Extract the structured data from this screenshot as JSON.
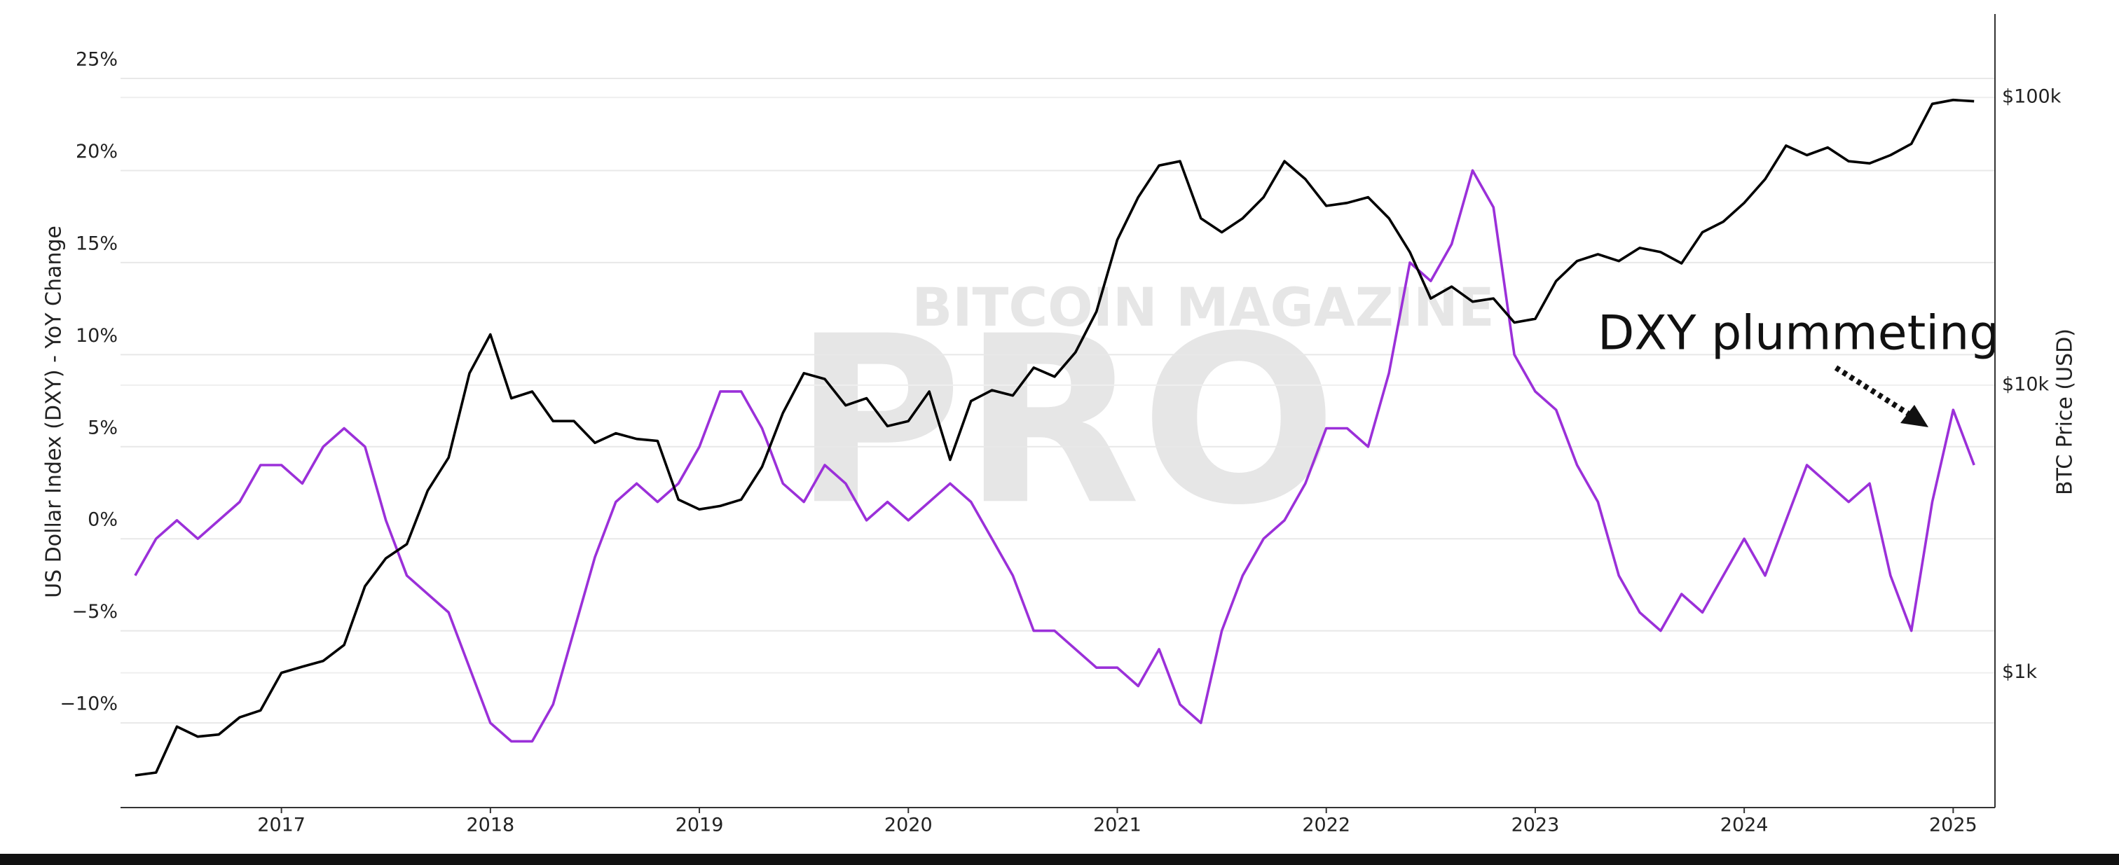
{
  "chart_data": {
    "type": "line",
    "watermark": [
      "BITCOIN MAGAZINE",
      "PRO"
    ],
    "ylabel": "US Dollar Index (DXY) - YoY Change",
    "y2label": "BTC Price (USD)",
    "annotation": "DXY plummeting",
    "grid": true,
    "y2scale": "log",
    "xlim": [
      2016.23,
      2025.2
    ],
    "xticks": [
      2017,
      2018,
      2019,
      2020,
      2021,
      2022,
      2023,
      2024,
      2025
    ],
    "ylim": [
      -14.6,
      28.5
    ],
    "yticks": [
      {
        "value": -10,
        "label": "−10%"
      },
      {
        "value": -5,
        "label": "−5%"
      },
      {
        "value": 0,
        "label": "0%"
      },
      {
        "value": 5,
        "label": "5%"
      },
      {
        "value": 10,
        "label": "10%"
      },
      {
        "value": 15,
        "label": "15%"
      },
      {
        "value": 20,
        "label": "20%"
      },
      {
        "value": 25,
        "label": "25%"
      }
    ],
    "y2lim": [
      340,
      195000
    ],
    "y2ticks": [
      {
        "value": 1000,
        "label": "$1k"
      },
      {
        "value": 10000,
        "label": "$10k"
      },
      {
        "value": 100000,
        "label": "$100k"
      }
    ],
    "x": [
      2016.3,
      2016.4,
      2016.5,
      2016.6,
      2016.7,
      2016.8,
      2016.9,
      2017.0,
      2017.1,
      2017.2,
      2017.3,
      2017.4,
      2017.5,
      2017.6,
      2017.7,
      2017.8,
      2017.9,
      2018.0,
      2018.1,
      2018.2,
      2018.3,
      2018.4,
      2018.5,
      2018.6,
      2018.7,
      2018.8,
      2018.9,
      2019.0,
      2019.1,
      2019.2,
      2019.3,
      2019.4,
      2019.5,
      2019.6,
      2019.7,
      2019.8,
      2019.9,
      2020.0,
      2020.1,
      2020.2,
      2020.3,
      2020.4,
      2020.5,
      2020.6,
      2020.7,
      2020.8,
      2020.9,
      2021.0,
      2021.1,
      2021.2,
      2021.3,
      2021.4,
      2021.5,
      2021.6,
      2021.7,
      2021.8,
      2021.9,
      2022.0,
      2022.1,
      2022.2,
      2022.3,
      2022.4,
      2022.5,
      2022.6,
      2022.7,
      2022.8,
      2022.9,
      2023.0,
      2023.1,
      2023.2,
      2023.3,
      2023.4,
      2023.5,
      2023.6,
      2023.7,
      2023.8,
      2023.9,
      2024.0,
      2024.1,
      2024.2,
      2024.3,
      2024.4,
      2024.5,
      2024.6,
      2024.7,
      2024.8,
      2024.9,
      2025.0,
      2025.1
    ],
    "series": [
      {
        "color": "#9b30d9",
        "values": [
          -2,
          0,
          1,
          0,
          1,
          2,
          4,
          4,
          3,
          5,
          6,
          5,
          1,
          -2,
          -3,
          -4,
          -7,
          -10,
          -11,
          -11,
          -9,
          -5,
          -1,
          2,
          3,
          2,
          3,
          5,
          8,
          8,
          6,
          3,
          2,
          4,
          3,
          1,
          2,
          1,
          2,
          3,
          2,
          0,
          -2,
          -5,
          -5,
          -6,
          -7,
          -7,
          -8,
          -6,
          -9,
          -10,
          -5,
          -2,
          0,
          1,
          3,
          6,
          6,
          5,
          9,
          15,
          14,
          16,
          20,
          18,
          10,
          8,
          7,
          4,
          2,
          -2,
          -4,
          -5,
          -3,
          -4,
          -2,
          0,
          -2,
          1,
          4,
          3,
          2,
          3,
          -2,
          -5,
          2,
          7,
          4
        ]
      },
      {
        "color": "#000000",
        "axis": "y2",
        "values": [
          440,
          450,
          650,
          600,
          610,
          700,
          740,
          1000,
          1050,
          1100,
          1250,
          2000,
          2500,
          2800,
          4300,
          5600,
          11000,
          15000,
          9000,
          9500,
          7500,
          7500,
          6300,
          6800,
          6500,
          6400,
          4000,
          3700,
          3800,
          4000,
          5200,
          8000,
          11000,
          10500,
          8500,
          9000,
          7200,
          7500,
          9500,
          5500,
          8800,
          9600,
          9200,
          11500,
          10700,
          13000,
          18000,
          32000,
          45000,
          58000,
          60000,
          38000,
          34000,
          38000,
          45000,
          60000,
          52000,
          42000,
          43000,
          45000,
          38000,
          29000,
          20000,
          22000,
          19500,
          20000,
          16500,
          17000,
          23000,
          27000,
          28500,
          27000,
          30000,
          29000,
          26500,
          34000,
          37000,
          43000,
          52000,
          68000,
          63000,
          67000,
          60000,
          59000,
          63000,
          69000,
          95000,
          98000,
          97000
        ]
      }
    ]
  }
}
